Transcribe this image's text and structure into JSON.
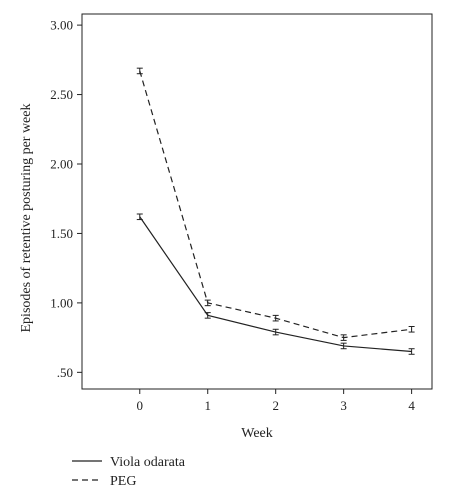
{
  "chart_data": {
    "type": "line",
    "title": "",
    "xlabel": "Week",
    "ylabel": "Episodes of retentive posturing per week",
    "x": [
      0,
      1,
      2,
      3,
      4
    ],
    "x_tick_labels": [
      "0",
      "1",
      "2",
      "3",
      "4"
    ],
    "xlim": [
      -0.85,
      4.3
    ],
    "ylim": [
      0.38,
      3.08
    ],
    "y_ticks": [
      0.5,
      1.0,
      1.5,
      2.0,
      2.5,
      3.0
    ],
    "y_tick_labels": [
      ".50",
      "1.00",
      "1.50",
      "2.00",
      "2.50",
      "3.00"
    ],
    "grid": false,
    "legend_placement": "bottom-left",
    "series": [
      {
        "name": "Viola odarata",
        "line_style": "solid",
        "color": "#222222",
        "values": [
          1.62,
          0.91,
          0.79,
          0.69,
          0.65
        ],
        "error": [
          0.02,
          0.02,
          0.02,
          0.02,
          0.02
        ]
      },
      {
        "name": "PEG",
        "line_style": "dashed",
        "color": "#222222",
        "values": [
          2.67,
          1.0,
          0.89,
          0.75,
          0.81
        ],
        "error": [
          0.02,
          0.02,
          0.02,
          0.02,
          0.02
        ]
      }
    ]
  }
}
